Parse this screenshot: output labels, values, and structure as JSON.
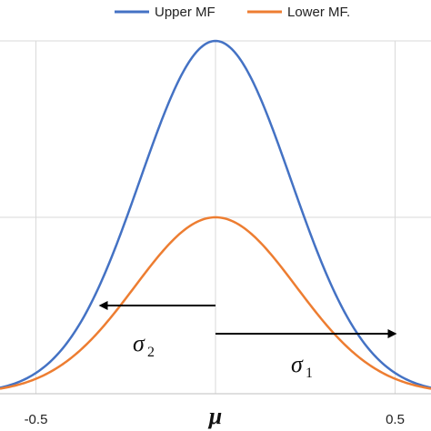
{
  "chart_data": {
    "type": "line",
    "xlim": [
      -0.6,
      0.6
    ],
    "ylim": [
      0,
      1
    ],
    "grid": true,
    "legend_position": "top",
    "x_ticks": [
      "-0.5",
      "0",
      "0.5"
    ],
    "x_center_label": "μ",
    "series": [
      {
        "name": "Upper MF",
        "color": "#4472C4",
        "peak": 1.0,
        "x_peak": 0.0,
        "sigma_left": 0.21,
        "sigma_right": 0.21
      },
      {
        "name": "Lower MF.",
        "color": "#ED7D31",
        "peak": 0.5,
        "x_peak": 0.0,
        "sigma_left": 0.225,
        "sigma_right": 0.225
      }
    ],
    "annotations": [
      {
        "symbol": "σ",
        "subscript": "2",
        "direction": "left",
        "x_from": 0.0,
        "x_to": -0.32,
        "y": 0.25
      },
      {
        "symbol": "σ",
        "subscript": "1",
        "direction": "right",
        "x_from": 0.0,
        "x_to": 0.5,
        "y": 0.17
      }
    ]
  }
}
